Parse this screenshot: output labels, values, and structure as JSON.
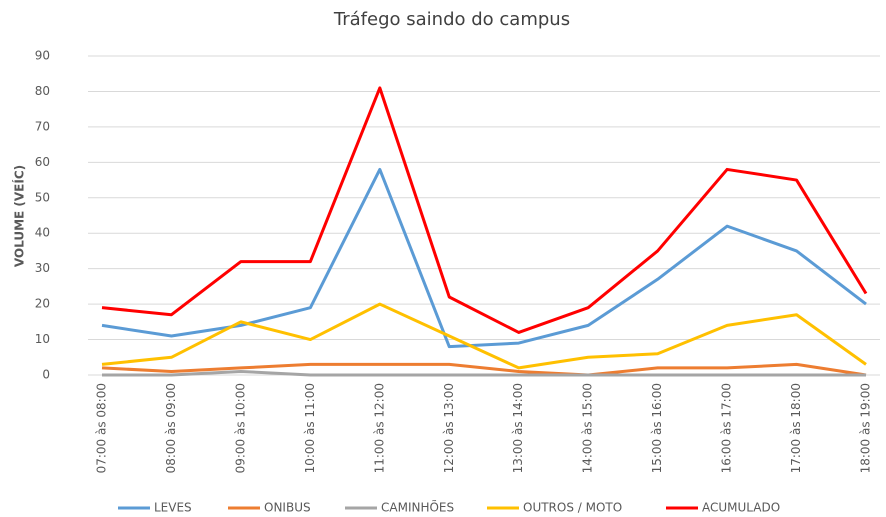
{
  "chart_data": {
    "type": "line",
    "title": "Tráfego saindo do campus",
    "y_label": "VOLUME (VEÍC)",
    "categories": [
      "07:00 às 08:00",
      "08:00 às 09:00",
      "09:00 às 10:00",
      "10:00 às 11:00",
      "11:00 às 12:00",
      "12:00 às 13:00",
      "13:00 às 14:00",
      "14:00 às 15:00",
      "15:00 às 16:00",
      "16:00 às 17:00",
      "17:00 às 18:00",
      "18:00 às 19:00"
    ],
    "series": [
      {
        "name": "LEVES",
        "color": "#5b9bd5",
        "values": [
          14,
          11,
          14,
          19,
          58,
          8,
          9,
          14,
          27,
          42,
          35,
          20
        ]
      },
      {
        "name": "ONIBUS",
        "color": "#ed7d31",
        "values": [
          2,
          1,
          2,
          3,
          3,
          3,
          1,
          0,
          2,
          2,
          3,
          0
        ]
      },
      {
        "name": "CAMINHÕES",
        "color": "#a5a5a5",
        "values": [
          0,
          0,
          1,
          0,
          0,
          0,
          0,
          0,
          0,
          0,
          0,
          0
        ]
      },
      {
        "name": "OUTROS / MOTO",
        "color": "#ffc000",
        "values": [
          3,
          5,
          15,
          10,
          20,
          11,
          2,
          5,
          6,
          14,
          17,
          3
        ]
      },
      {
        "name": "ACUMULADO",
        "color": "#ff0000",
        "values": [
          19,
          17,
          32,
          32,
          81,
          22,
          12,
          19,
          35,
          58,
          55,
          23
        ]
      }
    ],
    "ylim": [
      0,
      90
    ],
    "yticks": [
      0,
      10,
      20,
      30,
      40,
      50,
      60,
      70,
      80,
      90
    ],
    "grid": true,
    "legend": "bottom"
  }
}
